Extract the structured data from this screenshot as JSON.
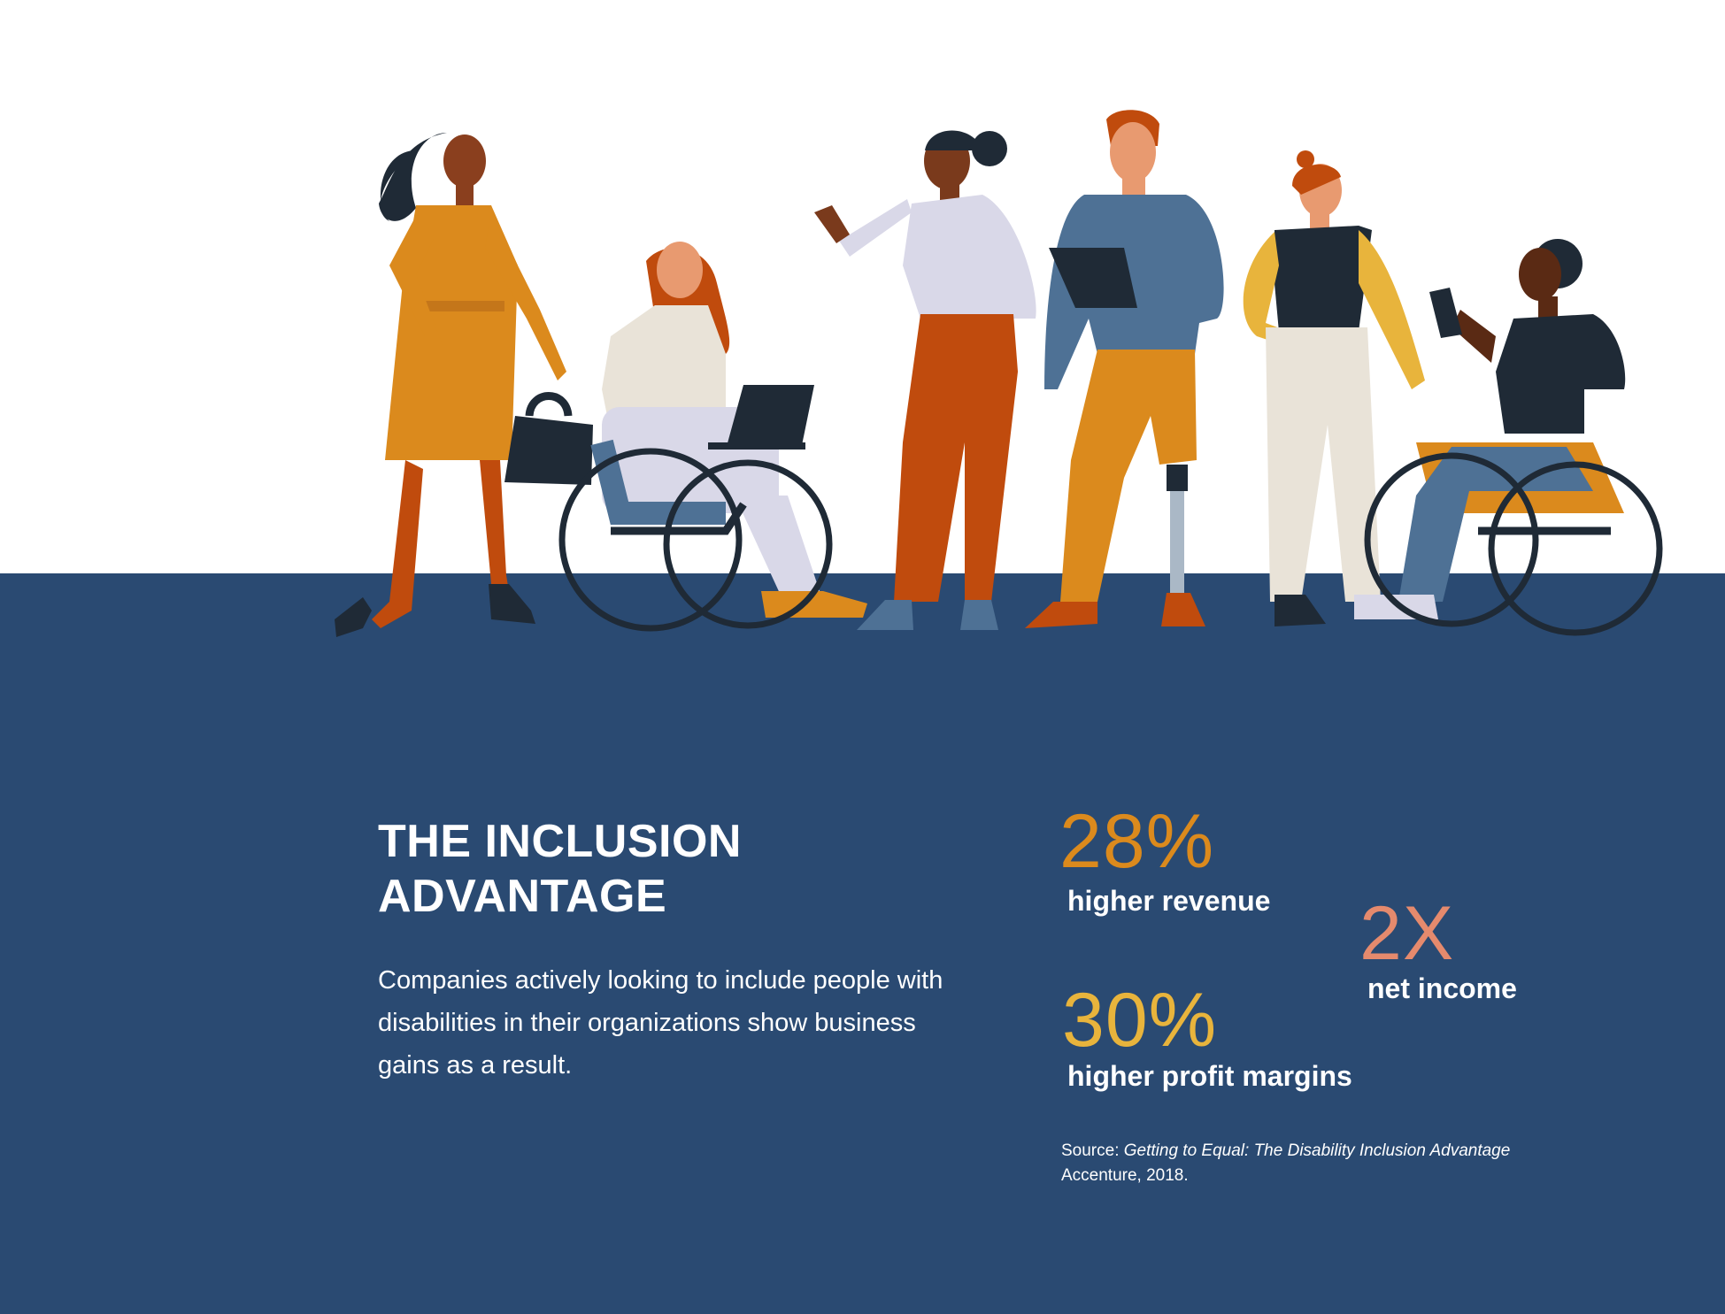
{
  "heading": {
    "line1": "THE INCLUSION",
    "line2": "ADVANTAGE"
  },
  "description": "Companies actively looking to include people with disabilities in their organizations show business gains as a result.",
  "stats": {
    "revenue": {
      "value": "28%",
      "label": "higher revenue",
      "color": "#db8a1d"
    },
    "net_income": {
      "value": "2X",
      "label": "net income",
      "color": "#e58a6d"
    },
    "profit": {
      "value": "30%",
      "label": "higher profit margins",
      "color": "#e8b43c"
    }
  },
  "source": {
    "prefix": "Source: ",
    "title": "Getting to Equal: The Disability Inclusion Advantage",
    "publisher": "Accenture, 2018."
  },
  "colors": {
    "band": "#2a4a72",
    "background": "#ffffff"
  }
}
